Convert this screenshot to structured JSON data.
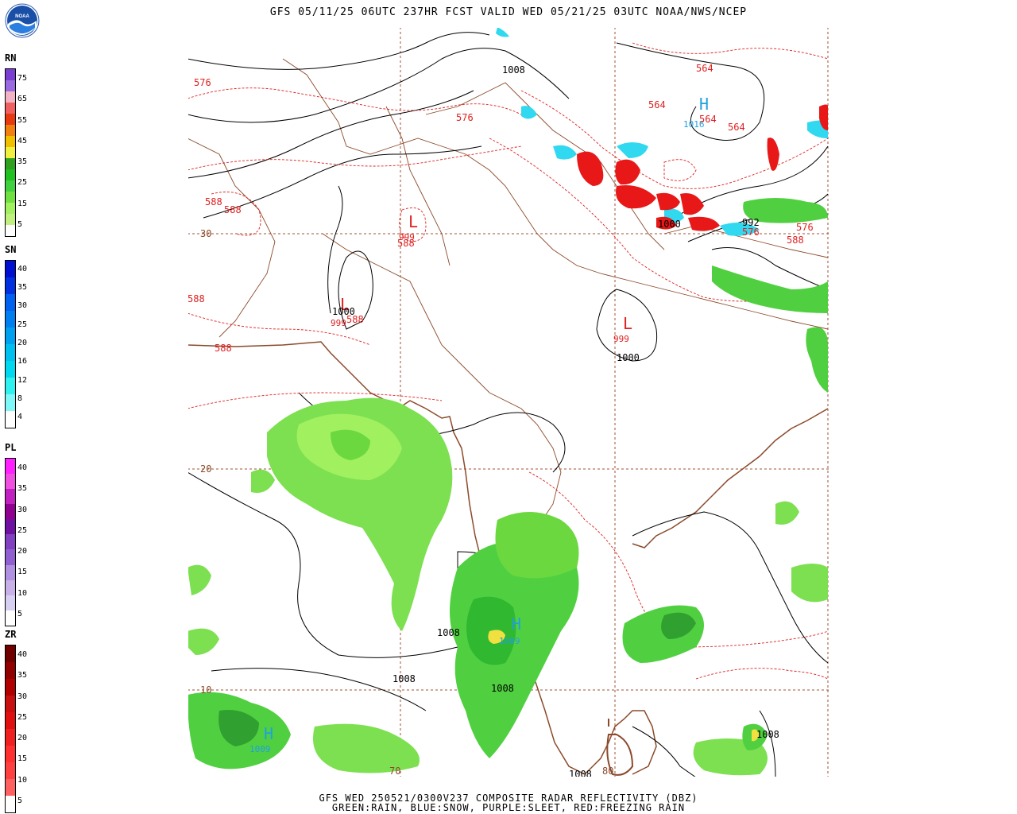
{
  "header": {
    "title": "GFS 05/11/25 06UTC 237HR FCST VALID WED 05/21/25 03UTC NOAA/NWS/NCEP"
  },
  "footer": {
    "line1": "GFS WED 250521/0300V237 COMPOSITE RADAR REFLECTIVITY (DBZ)",
    "line2": "GREEN:RAIN, BLUE:SNOW, PURPLE:SLEET, RED:FREEZING RAIN"
  },
  "logo": {
    "text": "NOAA"
  },
  "legends": {
    "rain": {
      "title": "RN",
      "labels": [
        "75",
        "65",
        "55",
        "45",
        "35",
        "25",
        "15",
        "5"
      ],
      "colors": [
        "#7a3fd0",
        "#9a6ae0",
        "#f2b4c4",
        "#f06060",
        "#e83a10",
        "#f08010",
        "#f0c000",
        "#f0f040",
        "#30a020",
        "#20c020",
        "#40d040",
        "#70e040",
        "#a0f060",
        "#c0f080",
        "#ffffff"
      ]
    },
    "snow": {
      "title": "SN",
      "labels": [
        "40",
        "35",
        "30",
        "25",
        "20",
        "16",
        "12",
        "8",
        "4"
      ],
      "colors": [
        "#0010d0",
        "#0030e0",
        "#0060f0",
        "#0080f0",
        "#00a0f0",
        "#00c0f0",
        "#00d8f0",
        "#30f0f0",
        "#80f8f8",
        "#ffffff"
      ]
    },
    "sleet": {
      "title": "PL",
      "labels": [
        "40",
        "35",
        "30",
        "25",
        "20",
        "15",
        "10",
        "5"
      ],
      "colors": [
        "#ff20ff",
        "#f050e0",
        "#c020c0",
        "#900090",
        "#7010a0",
        "#8040c0",
        "#9060d0",
        "#b090e0",
        "#c8b0e8",
        "#d8d0f0",
        "#ffffff"
      ]
    },
    "freezing_rain": {
      "title": "ZR",
      "labels": [
        "40",
        "35",
        "30",
        "25",
        "20",
        "15",
        "10",
        "5"
      ],
      "colors": [
        "#700000",
        "#900000",
        "#b00000",
        "#c81010",
        "#e01010",
        "#f02020",
        "#ff3030",
        "#ff4040",
        "#ff6060",
        "#ffffff"
      ]
    }
  },
  "map": {
    "lat_labels": [
      "30",
      "20",
      "10"
    ],
    "lon_labels": [
      "70",
      "80"
    ],
    "pressure_centers": [
      {
        "type": "H",
        "value": "1016",
        "color": "#20a0e0"
      },
      {
        "type": "L",
        "value": "999",
        "color": "#e02020"
      },
      {
        "type": "L",
        "value": "999",
        "color": "#e02020"
      },
      {
        "type": "L",
        "value": "999",
        "color": "#e02020"
      },
      {
        "type": "H",
        "value": "1009",
        "color": "#20a0e0"
      },
      {
        "type": "H",
        "value": "1009",
        "color": "#20a0e0"
      }
    ],
    "isobar_labels": [
      "1008",
      "1000",
      "1000",
      "1000",
      "992",
      "1008",
      "1008",
      "1008",
      "1008",
      "1008"
    ],
    "height_labels": [
      "576",
      "576",
      "564",
      "564",
      "564",
      "564",
      "588",
      "588",
      "588",
      "588",
      "588",
      "588",
      "576",
      "576",
      "588"
    ]
  }
}
